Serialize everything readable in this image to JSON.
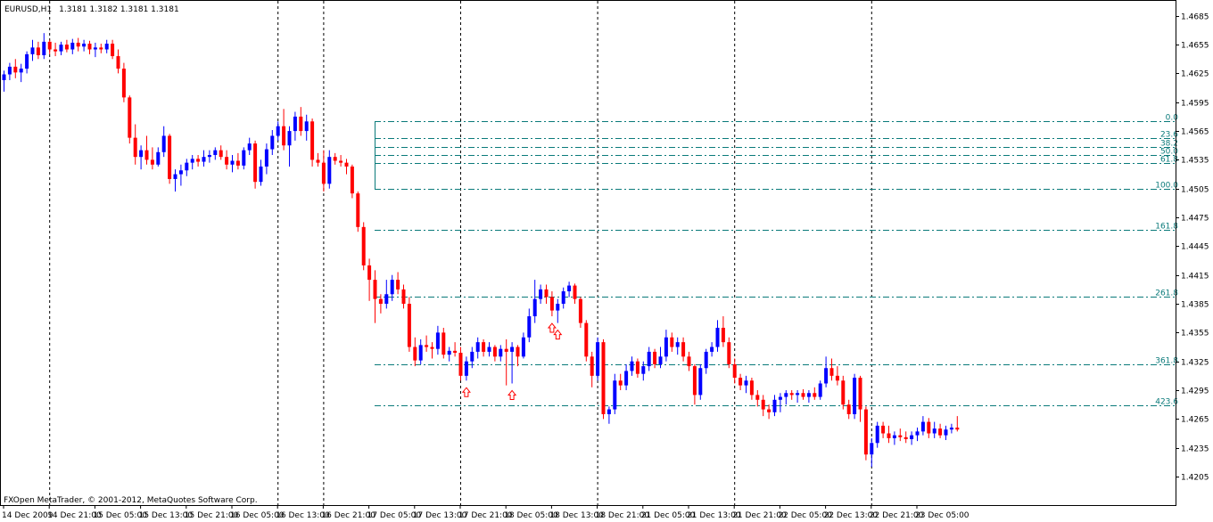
{
  "header": {
    "symbol": "EURUSD,H1",
    "ohlc": "1.3181 1.3182 1.3181 1.3181"
  },
  "footer": {
    "copyright": "FXOpen MetaTrader, © 2001-2012, MetaQuotes Software Corp."
  },
  "colors": {
    "bull": "#0000ff",
    "bear": "#ff0000",
    "fib": "#0a7a7a",
    "arrow": "#ff0000",
    "grid": "#000000"
  },
  "chart_data": {
    "type": "candlestick",
    "ylim": [
      1.4205,
      1.4695
    ],
    "y_ticks": [
      "1.4685",
      "1.4655",
      "1.4625",
      "1.4595",
      "1.4565",
      "1.4535",
      "1.4505",
      "1.4475",
      "1.4445",
      "1.4415",
      "1.4385",
      "1.4355",
      "1.4325",
      "1.4295",
      "1.4265",
      "1.4235",
      "1.4205"
    ],
    "x_ticks": [
      "14 Dec 2009",
      "14 Dec 21:00",
      "15 Dec 05:00",
      "15 Dec 13:00",
      "15 Dec 21:00",
      "16 Dec 05:00",
      "16 Dec 13:00",
      "16 Dec 21:00",
      "17 Dec 05:00",
      "17 Dec 13:00",
      "17 Dec 21:00",
      "18 Dec 05:00",
      "18 Dec 13:00",
      "18 Dec 21:00",
      "21 Dec 05:00",
      "21 Dec 13:00",
      "21 Dec 21:00",
      "22 Dec 05:00",
      "22 Dec 13:00",
      "22 Dec 21:00",
      "23 Dec 05:00"
    ],
    "day_separators": [
      "14 Dec 21:00",
      "16 Dec 13:00",
      "16 Dec 21:00",
      "17 Dec 21:00",
      "18 Dec 21:00",
      "21 Dec 21:00",
      "22 Dec 21:00"
    ],
    "fibonacci": [
      {
        "level": "0.0",
        "price": 1.4575
      },
      {
        "level": "23.6",
        "price": 1.4558
      },
      {
        "level": "38.2",
        "price": 1.4548
      },
      {
        "level": "50.0",
        "price": 1.454
      },
      {
        "level": "61.8",
        "price": 1.4532
      },
      {
        "level": "100.0",
        "price": 1.4505
      },
      {
        "level": "161.8",
        "price": 1.4462
      },
      {
        "level": "261.8",
        "price": 1.4392
      },
      {
        "level": "361.8",
        "price": 1.4322
      },
      {
        "level": "423.6",
        "price": 1.4279
      }
    ],
    "fib_start_index": 65,
    "arrows_at_index": [
      81,
      89,
      96,
      97
    ],
    "candles": [
      [
        1.4618,
        1.4628,
        1.4606,
        1.4624
      ],
      [
        1.4624,
        1.4636,
        1.4618,
        1.4632
      ],
      [
        1.4632,
        1.464,
        1.462,
        1.4626
      ],
      [
        1.4626,
        1.4635,
        1.4616,
        1.463
      ],
      [
        1.463,
        1.4648,
        1.4625,
        1.4645
      ],
      [
        1.4645,
        1.466,
        1.4638,
        1.4652
      ],
      [
        1.4652,
        1.4658,
        1.464,
        1.4644
      ],
      [
        1.4644,
        1.4667,
        1.464,
        1.4658
      ],
      [
        1.4658,
        1.466,
        1.4645,
        1.465
      ],
      [
        1.465,
        1.4657,
        1.4643,
        1.4648
      ],
      [
        1.4648,
        1.4658,
        1.4644,
        1.4655
      ],
      [
        1.4655,
        1.466,
        1.4647,
        1.465
      ],
      [
        1.465,
        1.4661,
        1.4645,
        1.4657
      ],
      [
        1.4657,
        1.4662,
        1.4648,
        1.4653
      ],
      [
        1.4653,
        1.466,
        1.4648,
        1.4656
      ],
      [
        1.4656,
        1.4659,
        1.4645,
        1.465
      ],
      [
        1.465,
        1.4657,
        1.4642,
        1.4652
      ],
      [
        1.4652,
        1.4656,
        1.4646,
        1.465
      ],
      [
        1.465,
        1.466,
        1.4646,
        1.4656
      ],
      [
        1.4656,
        1.466,
        1.464,
        1.4643
      ],
      [
        1.4643,
        1.465,
        1.4625,
        1.463
      ],
      [
        1.463,
        1.4636,
        1.4595,
        1.46
      ],
      [
        1.46,
        1.4602,
        1.4552,
        1.4558
      ],
      [
        1.4558,
        1.4572,
        1.453,
        1.4538
      ],
      [
        1.4538,
        1.455,
        1.4525,
        1.4545
      ],
      [
        1.4545,
        1.456,
        1.453,
        1.4535
      ],
      [
        1.4535,
        1.4548,
        1.4525,
        1.453
      ],
      [
        1.453,
        1.4548,
        1.4528,
        1.4543
      ],
      [
        1.4543,
        1.457,
        1.4538,
        1.456
      ],
      [
        1.456,
        1.4562,
        1.451,
        1.4515
      ],
      [
        1.4515,
        1.4525,
        1.4502,
        1.452
      ],
      [
        1.452,
        1.453,
        1.4508,
        1.4524
      ],
      [
        1.4524,
        1.4536,
        1.4518,
        1.4532
      ],
      [
        1.4532,
        1.454,
        1.4525,
        1.4536
      ],
      [
        1.4536,
        1.454,
        1.4528,
        1.4533
      ],
      [
        1.4533,
        1.4545,
        1.4528,
        1.4538
      ],
      [
        1.4538,
        1.4545,
        1.4532,
        1.454
      ],
      [
        1.454,
        1.4548,
        1.4535,
        1.4545
      ],
      [
        1.4545,
        1.455,
        1.4535,
        1.4538
      ],
      [
        1.4538,
        1.4545,
        1.4525,
        1.453
      ],
      [
        1.453,
        1.454,
        1.4522,
        1.4534
      ],
      [
        1.4534,
        1.4542,
        1.4525,
        1.4529
      ],
      [
        1.4529,
        1.4548,
        1.4525,
        1.4545
      ],
      [
        1.4545,
        1.4558,
        1.454,
        1.4552
      ],
      [
        1.4552,
        1.4555,
        1.4505,
        1.4512
      ],
      [
        1.4512,
        1.4535,
        1.4508,
        1.4528
      ],
      [
        1.4528,
        1.4552,
        1.452,
        1.4546
      ],
      [
        1.4546,
        1.4566,
        1.454,
        1.456
      ],
      [
        1.456,
        1.4575,
        1.4555,
        1.457
      ],
      [
        1.457,
        1.4588,
        1.4545,
        1.455
      ],
      [
        1.455,
        1.457,
        1.4528,
        1.4565
      ],
      [
        1.4565,
        1.4585,
        1.4555,
        1.458
      ],
      [
        1.458,
        1.459,
        1.456,
        1.4565
      ],
      [
        1.4565,
        1.4582,
        1.4555,
        1.4575
      ],
      [
        1.4575,
        1.4578,
        1.4528,
        1.4535
      ],
      [
        1.4535,
        1.4542,
        1.4528,
        1.4532
      ],
      [
        1.4532,
        1.4545,
        1.4502,
        1.451
      ],
      [
        1.451,
        1.4545,
        1.4505,
        1.4538
      ],
      [
        1.4538,
        1.4542,
        1.453,
        1.4534
      ],
      [
        1.4534,
        1.454,
        1.4528,
        1.4532
      ],
      [
        1.4532,
        1.4536,
        1.452,
        1.4528
      ],
      [
        1.4528,
        1.453,
        1.4495,
        1.45
      ],
      [
        1.45,
        1.4502,
        1.446,
        1.4465
      ],
      [
        1.4465,
        1.447,
        1.442,
        1.4425
      ],
      [
        1.4425,
        1.4432,
        1.4388,
        1.441
      ],
      [
        1.441,
        1.442,
        1.4365,
        1.439
      ],
      [
        1.439,
        1.4395,
        1.4375,
        1.4385
      ],
      [
        1.4385,
        1.441,
        1.438,
        1.4395
      ],
      [
        1.4395,
        1.4415,
        1.4388,
        1.441
      ],
      [
        1.441,
        1.4418,
        1.4395,
        1.44
      ],
      [
        1.44,
        1.4405,
        1.438,
        1.4385
      ],
      [
        1.4385,
        1.4392,
        1.4335,
        1.434
      ],
      [
        1.434,
        1.435,
        1.432,
        1.4326
      ],
      [
        1.4326,
        1.4348,
        1.4322,
        1.4342
      ],
      [
        1.4342,
        1.4352,
        1.4335,
        1.434
      ],
      [
        1.434,
        1.4345,
        1.4328,
        1.4338
      ],
      [
        1.4338,
        1.4362,
        1.4332,
        1.4355
      ],
      [
        1.4355,
        1.436,
        1.4328,
        1.4332
      ],
      [
        1.4332,
        1.434,
        1.4325,
        1.4336
      ],
      [
        1.4336,
        1.4345,
        1.433,
        1.4334
      ],
      [
        1.4334,
        1.434,
        1.4305,
        1.431
      ],
      [
        1.431,
        1.433,
        1.4305,
        1.4325
      ],
      [
        1.4325,
        1.434,
        1.4318,
        1.4335
      ],
      [
        1.4335,
        1.435,
        1.4328,
        1.4345
      ],
      [
        1.4345,
        1.4348,
        1.433,
        1.4335
      ],
      [
        1.4335,
        1.4345,
        1.433,
        1.434
      ],
      [
        1.434,
        1.4342,
        1.4325,
        1.433
      ],
      [
        1.433,
        1.4342,
        1.4325,
        1.4338
      ],
      [
        1.4338,
        1.4348,
        1.43,
        1.4335
      ],
      [
        1.4335,
        1.4345,
        1.4302,
        1.434
      ],
      [
        1.434,
        1.4342,
        1.432,
        1.433
      ],
      [
        1.433,
        1.4355,
        1.4328,
        1.435
      ],
      [
        1.435,
        1.438,
        1.4345,
        1.4372
      ],
      [
        1.4372,
        1.441,
        1.4365,
        1.439
      ],
      [
        1.439,
        1.4405,
        1.4385,
        1.44
      ],
      [
        1.44,
        1.4405,
        1.4385,
        1.4392
      ],
      [
        1.4392,
        1.4398,
        1.4372,
        1.4378
      ],
      [
        1.4378,
        1.439,
        1.4365,
        1.4385
      ],
      [
        1.4385,
        1.4402,
        1.438,
        1.4398
      ],
      [
        1.4398,
        1.4408,
        1.4392,
        1.4404
      ],
      [
        1.4404,
        1.4406,
        1.4385,
        1.439
      ],
      [
        1.439,
        1.4392,
        1.436,
        1.4365
      ],
      [
        1.4365,
        1.4368,
        1.4325,
        1.433
      ],
      [
        1.433,
        1.4335,
        1.4298,
        1.431
      ],
      [
        1.431,
        1.435,
        1.4305,
        1.4345
      ],
      [
        1.4345,
        1.4348,
        1.4265,
        1.427
      ],
      [
        1.427,
        1.4278,
        1.426,
        1.4275
      ],
      [
        1.4275,
        1.4312,
        1.427,
        1.4305
      ],
      [
        1.4305,
        1.4312,
        1.4295,
        1.43
      ],
      [
        1.43,
        1.4322,
        1.4295,
        1.4315
      ],
      [
        1.4315,
        1.433,
        1.431,
        1.4325
      ],
      [
        1.4325,
        1.4328,
        1.4308,
        1.4312
      ],
      [
        1.4312,
        1.4325,
        1.4305,
        1.432
      ],
      [
        1.432,
        1.434,
        1.4315,
        1.4335
      ],
      [
        1.4335,
        1.4338,
        1.4318,
        1.4322
      ],
      [
        1.4322,
        1.434,
        1.4318,
        1.433
      ],
      [
        1.433,
        1.4358,
        1.4325,
        1.435
      ],
      [
        1.435,
        1.4355,
        1.4335,
        1.434
      ],
      [
        1.434,
        1.435,
        1.4332,
        1.4345
      ],
      [
        1.4345,
        1.435,
        1.4325,
        1.433
      ],
      [
        1.433,
        1.4335,
        1.4315,
        1.432
      ],
      [
        1.432,
        1.4322,
        1.428,
        1.429
      ],
      [
        1.429,
        1.4322,
        1.4285,
        1.4318
      ],
      [
        1.4318,
        1.4338,
        1.4312,
        1.4335
      ],
      [
        1.4335,
        1.4345,
        1.433,
        1.434
      ],
      [
        1.434,
        1.4368,
        1.4335,
        1.436
      ],
      [
        1.436,
        1.4372,
        1.434,
        1.4345
      ],
      [
        1.4345,
        1.435,
        1.4318,
        1.4322
      ],
      [
        1.4322,
        1.4328,
        1.4302,
        1.4308
      ],
      [
        1.4308,
        1.4312,
        1.4295,
        1.43
      ],
      [
        1.43,
        1.431,
        1.4292,
        1.4305
      ],
      [
        1.4305,
        1.4308,
        1.4285,
        1.429
      ],
      [
        1.429,
        1.4295,
        1.4278,
        1.4285
      ],
      [
        1.4285,
        1.429,
        1.4268,
        1.4275
      ],
      [
        1.4275,
        1.428,
        1.4265,
        1.4272
      ],
      [
        1.4272,
        1.429,
        1.4268,
        1.4285
      ],
      [
        1.4285,
        1.4292,
        1.4272,
        1.4288
      ],
      [
        1.4288,
        1.4295,
        1.428,
        1.4292
      ],
      [
        1.4292,
        1.4295,
        1.4285,
        1.429
      ],
      [
        1.429,
        1.4295,
        1.4282,
        1.4292
      ],
      [
        1.4292,
        1.4296,
        1.4285,
        1.4288
      ],
      [
        1.4288,
        1.4295,
        1.4282,
        1.4292
      ],
      [
        1.4292,
        1.4298,
        1.4285,
        1.4288
      ],
      [
        1.4288,
        1.4305,
        1.4285,
        1.4302
      ],
      [
        1.4302,
        1.433,
        1.4298,
        1.4318
      ],
      [
        1.4318,
        1.4328,
        1.4305,
        1.431
      ],
      [
        1.431,
        1.432,
        1.43,
        1.4305
      ],
      [
        1.4305,
        1.431,
        1.4275,
        1.428
      ],
      [
        1.428,
        1.4285,
        1.4265,
        1.427
      ],
      [
        1.427,
        1.4312,
        1.4265,
        1.4308
      ],
      [
        1.4308,
        1.431,
        1.4262,
        1.4275
      ],
      [
        1.4275,
        1.4278,
        1.4222,
        1.4228
      ],
      [
        1.4228,
        1.4245,
        1.4215,
        1.424
      ],
      [
        1.424,
        1.4262,
        1.4235,
        1.4258
      ],
      [
        1.4258,
        1.4262,
        1.4245,
        1.425
      ],
      [
        1.425,
        1.4258,
        1.424,
        1.4245
      ],
      [
        1.4245,
        1.4252,
        1.4238,
        1.4248
      ],
      [
        1.4248,
        1.4255,
        1.4242,
        1.4246
      ],
      [
        1.4246,
        1.4252,
        1.424,
        1.4244
      ],
      [
        1.4244,
        1.4252,
        1.4238,
        1.4248
      ],
      [
        1.4248,
        1.4256,
        1.4242,
        1.4252
      ],
      [
        1.4252,
        1.4268,
        1.4248,
        1.4262
      ],
      [
        1.4262,
        1.4266,
        1.4245,
        1.425
      ],
      [
        1.425,
        1.4262,
        1.4245,
        1.4255
      ],
      [
        1.4255,
        1.426,
        1.4245,
        1.4248
      ],
      [
        1.4248,
        1.4258,
        1.4243,
        1.4254
      ],
      [
        1.4254,
        1.426,
        1.425,
        1.4256
      ],
      [
        1.4256,
        1.4268,
        1.4252,
        1.4254
      ]
    ]
  }
}
